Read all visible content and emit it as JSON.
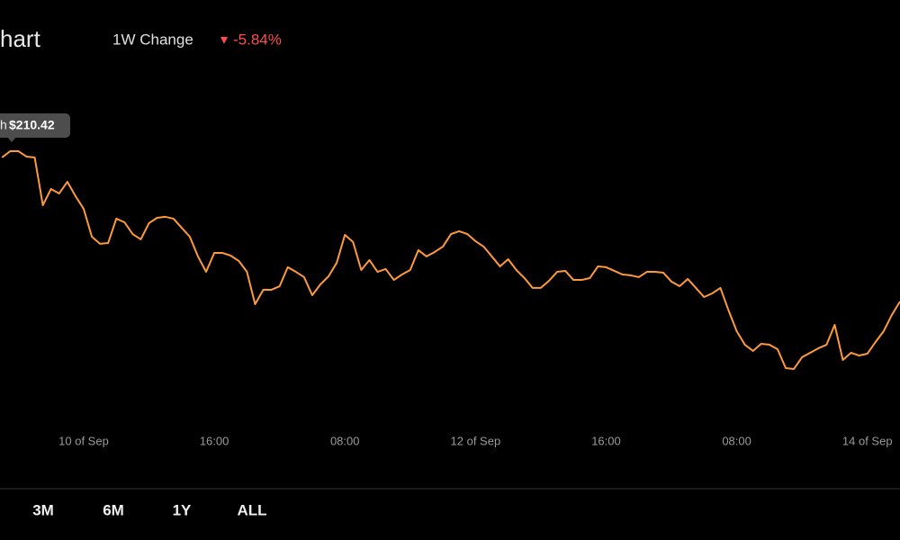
{
  "header": {
    "title": "hart",
    "change_label": "1W Change",
    "change_value": "-5.84%"
  },
  "tooltip": {
    "label": "h",
    "value": "$210.42"
  },
  "chart_data": {
    "type": "line",
    "color": "#ff9a3c",
    "x": [
      -10,
      -9,
      -8,
      -7,
      -6,
      -5,
      -4,
      -3,
      -2,
      -1,
      0,
      1,
      2,
      3,
      4,
      5,
      6,
      7,
      8,
      9,
      10,
      11,
      12,
      13,
      14,
      15,
      16,
      17,
      18,
      19,
      20,
      21,
      22,
      23,
      24,
      25,
      26,
      27,
      28,
      29,
      30,
      31,
      32,
      33,
      34,
      35,
      36,
      37,
      38,
      39,
      40,
      41,
      42,
      43,
      44,
      45,
      46,
      47,
      48,
      49,
      50,
      51,
      52,
      53,
      54,
      55,
      56,
      57,
      58,
      59,
      60,
      61,
      62,
      63,
      64,
      65,
      66,
      67,
      68,
      69,
      70,
      71,
      72,
      73,
      74,
      75,
      76,
      77,
      78,
      79,
      80,
      81,
      82,
      83,
      84,
      85,
      86,
      87,
      88,
      89,
      90,
      91,
      92,
      93,
      94,
      95,
      96,
      97,
      98,
      99,
      100
    ],
    "values": [
      209.9,
      210.42,
      210.42,
      209.97,
      209.9,
      205.96,
      207.3,
      206.93,
      207.89,
      206.71,
      205.66,
      203.36,
      202.77,
      202.84,
      204.85,
      204.55,
      203.58,
      203.14,
      204.48,
      204.92,
      205.0,
      204.85,
      204.1,
      203.36,
      201.73,
      200.46,
      202.02,
      202.02,
      201.8,
      201.36,
      200.46,
      197.79,
      198.98,
      198.98,
      199.27,
      200.84,
      200.46,
      200.02,
      198.53,
      199.42,
      200.09,
      201.21,
      203.51,
      202.92,
      200.61,
      201.43,
      200.46,
      200.69,
      199.79,
      200.24,
      200.61,
      202.25,
      201.73,
      202.1,
      202.54,
      203.58,
      203.81,
      203.58,
      202.99,
      202.54,
      201.73,
      200.91,
      201.5,
      200.61,
      199.94,
      199.13,
      199.13,
      199.72,
      200.46,
      200.54,
      199.79,
      199.79,
      199.94,
      200.91,
      200.84,
      200.54,
      200.24,
      200.17,
      200.02,
      200.46,
      200.46,
      200.39,
      199.65,
      199.27,
      199.87,
      199.13,
      198.38,
      198.68,
      199.13,
      197.27,
      195.56,
      194.44,
      193.93,
      194.52,
      194.44,
      194.07,
      192.51,
      192.44,
      193.41,
      193.78,
      194.15,
      194.44,
      196.08,
      193.18,
      193.78,
      193.55,
      193.7,
      194.67,
      195.56,
      196.9,
      198.01
    ],
    "xlim": [
      -10.25,
      100
    ],
    "ylim": [
      187.98,
      215.47
    ],
    "xticks": [
      {
        "value": 0,
        "label": "10 of Sep"
      },
      {
        "value": 16,
        "label": "16:00"
      },
      {
        "value": 32,
        "label": "08:00"
      },
      {
        "value": 48,
        "label": "12 of Sep"
      },
      {
        "value": 64,
        "label": "16:00"
      },
      {
        "value": 80,
        "label": "08:00"
      },
      {
        "value": 96,
        "label": "14 of Sep"
      }
    ]
  },
  "ranges": [
    "3M",
    "6M",
    "1Y",
    "ALL"
  ]
}
